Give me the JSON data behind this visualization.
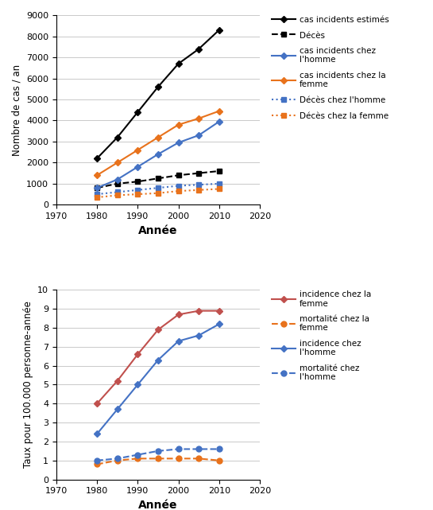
{
  "years": [
    1980,
    1985,
    1990,
    1995,
    2000,
    2005,
    2010
  ],
  "top": {
    "cas_incidents_estimes": [
      2200,
      3200,
      4400,
      5600,
      6700,
      7400,
      8300
    ],
    "deces": [
      800,
      1000,
      1100,
      1250,
      1400,
      1500,
      1600
    ],
    "cas_incidents_homme": [
      800,
      1200,
      1800,
      2400,
      2950,
      3300,
      3950
    ],
    "cas_incidents_femme": [
      1400,
      2000,
      2600,
      3200,
      3800,
      4100,
      4450
    ],
    "deces_homme": [
      500,
      600,
      700,
      800,
      900,
      950,
      1000
    ],
    "deces_femme": [
      350,
      450,
      500,
      550,
      650,
      700,
      750
    ],
    "ylabel": "Nombre de cas / an",
    "xlabel": "Année",
    "ylim": [
      0,
      9000
    ],
    "xlim": [
      1970,
      2020
    ],
    "yticks": [
      0,
      1000,
      2000,
      3000,
      4000,
      5000,
      6000,
      7000,
      8000,
      9000
    ],
    "xticks": [
      1970,
      1980,
      1990,
      2000,
      2010,
      2020
    ]
  },
  "bottom": {
    "incidence_femme": [
      4.0,
      5.2,
      6.6,
      7.9,
      8.7,
      8.9,
      8.9
    ],
    "mortalite_femme": [
      0.8,
      1.0,
      1.1,
      1.1,
      1.1,
      1.1,
      1.0
    ],
    "incidence_homme": [
      2.4,
      3.7,
      5.0,
      6.3,
      7.3,
      7.6,
      8.2
    ],
    "mortalite_homme": [
      1.0,
      1.1,
      1.3,
      1.5,
      1.6,
      1.6,
      1.6
    ],
    "ylabel": "Taux pour 100.000 personne-année",
    "xlabel": "Année",
    "ylim": [
      0,
      10
    ],
    "xlim": [
      1970,
      2020
    ],
    "yticks": [
      0,
      1,
      2,
      3,
      4,
      5,
      6,
      7,
      8,
      9,
      10
    ],
    "xticks": [
      1970,
      1980,
      1990,
      2000,
      2010,
      2020
    ]
  },
  "colors": {
    "black": "#000000",
    "blue": "#4472C4",
    "orange": "#E8721C",
    "red": "#C0504D"
  },
  "legend_top": [
    "cas incidents estimés",
    "Décès",
    "",
    "cas incidents chez\nl'homme",
    "cas incidents chez la\nfemme",
    "",
    "Décès chez l'homme",
    "Décès chez la femme"
  ],
  "legend_bottom": [
    "incidence chez la\nfemme",
    "mortalité chez la\nfemme",
    "",
    "incidence chez\nl'homme",
    "",
    "mortalité chez\nl'homme"
  ]
}
